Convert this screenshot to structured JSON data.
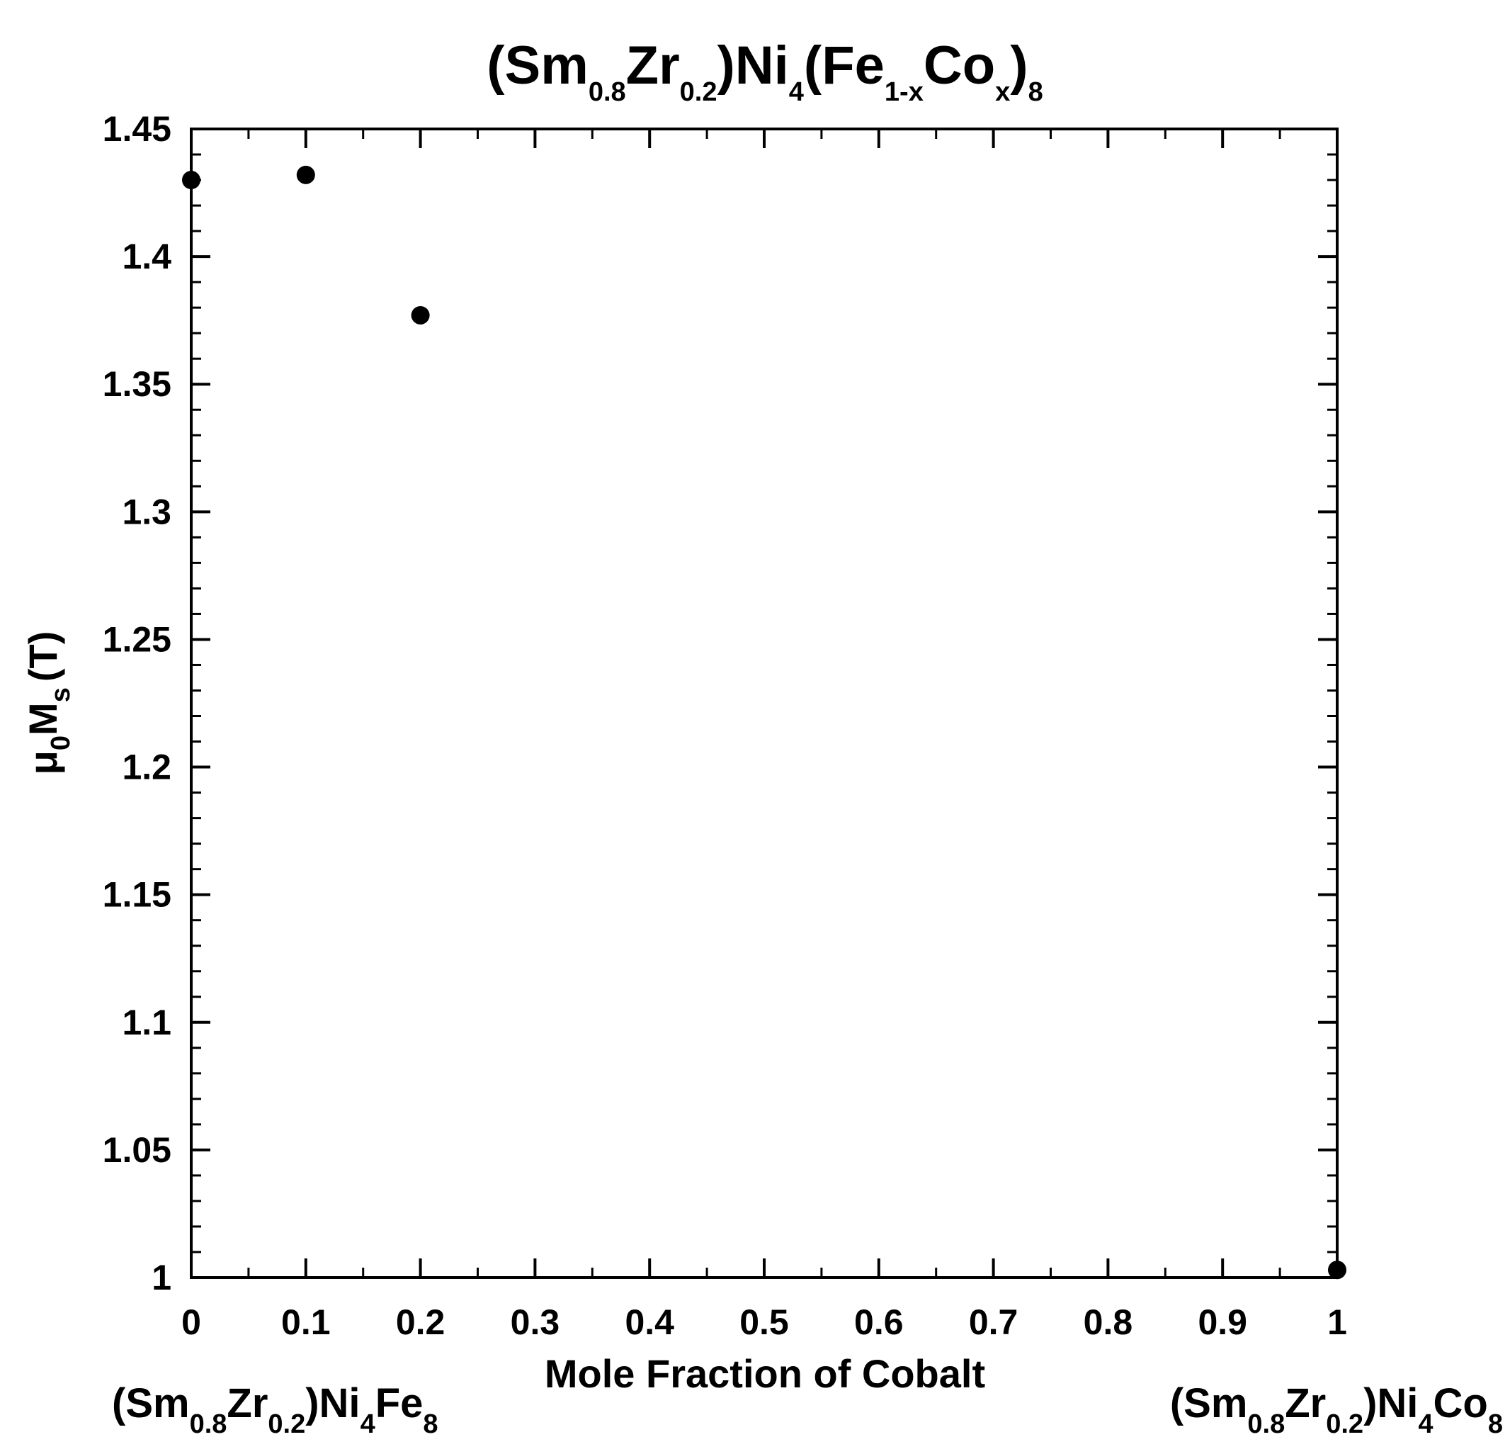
{
  "chart_data": {
    "type": "scatter",
    "title": {
      "base1": "(Sm",
      "sub1": "0.8",
      "base2": "Zr",
      "sub2": "0.2",
      "base3": ")Ni",
      "sub3": "4",
      "base4": "(Fe",
      "sub4": "1-x",
      "base5": "Co",
      "sub5": "x",
      "base6": ")",
      "sub6": "8"
    },
    "xlabel": "Mole Fraction of Cobalt",
    "ylabel": {
      "part1": "μ",
      "sub1": "0",
      "part2": "M",
      "sub2": "s",
      "part3": "(T)"
    },
    "left_annotation": {
      "base1": "(Sm",
      "sub1": "0.8",
      "base2": "Zr",
      "sub2": "0.2",
      "base3": ")Ni",
      "sub3": "4",
      "base4": "Fe",
      "sub4": "8"
    },
    "right_annotation": {
      "base1": "(Sm",
      "sub1": "0.8",
      "base2": "Zr",
      "sub2": "0.2",
      "base3": ")Ni",
      "sub3": "4",
      "base4": "Co",
      "sub4": "8"
    },
    "xlim": [
      0,
      1
    ],
    "ylim": [
      1,
      1.45
    ],
    "x_ticks": [
      {
        "value": 0,
        "label": "0"
      },
      {
        "value": 0.1,
        "label": "0.1"
      },
      {
        "value": 0.2,
        "label": "0.2"
      },
      {
        "value": 0.3,
        "label": "0.3"
      },
      {
        "value": 0.4,
        "label": "0.4"
      },
      {
        "value": 0.5,
        "label": "0.5"
      },
      {
        "value": 0.6,
        "label": "0.6"
      },
      {
        "value": 0.7,
        "label": "0.7"
      },
      {
        "value": 0.8,
        "label": "0.8"
      },
      {
        "value": 0.9,
        "label": "0.9"
      },
      {
        "value": 1,
        "label": "1"
      }
    ],
    "y_ticks": [
      {
        "value": 1,
        "label": "1"
      },
      {
        "value": 1.05,
        "label": "1.05"
      },
      {
        "value": 1.1,
        "label": "1.1"
      },
      {
        "value": 1.15,
        "label": "1.15"
      },
      {
        "value": 1.2,
        "label": "1.2"
      },
      {
        "value": 1.25,
        "label": "1.25"
      },
      {
        "value": 1.3,
        "label": "1.3"
      },
      {
        "value": 1.35,
        "label": "1.35"
      },
      {
        "value": 1.4,
        "label": "1.4"
      },
      {
        "value": 1.45,
        "label": "1.45"
      }
    ],
    "series": [
      {
        "points": [
          {
            "x": 0,
            "y": 1.43
          },
          {
            "x": 0.1,
            "y": 1.432
          },
          {
            "x": 0.2,
            "y": 1.377
          },
          {
            "x": 1,
            "y": 1.003
          }
        ]
      }
    ],
    "grid": false,
    "marker_color": "#000000"
  }
}
